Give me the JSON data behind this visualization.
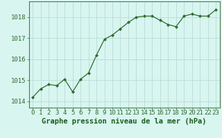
{
  "x": [
    0,
    1,
    2,
    3,
    4,
    5,
    6,
    7,
    8,
    9,
    10,
    11,
    12,
    13,
    14,
    15,
    16,
    17,
    18,
    19,
    20,
    21,
    22,
    23
  ],
  "y": [
    1014.2,
    1014.6,
    1014.8,
    1014.75,
    1015.05,
    1014.45,
    1015.05,
    1015.35,
    1016.2,
    1016.95,
    1017.15,
    1017.45,
    1017.75,
    1018.0,
    1018.05,
    1018.05,
    1017.85,
    1017.65,
    1017.55,
    1018.05,
    1018.15,
    1018.05,
    1018.05,
    1018.35
  ],
  "line_color": "#2d6a2d",
  "marker_color": "#2d6a2d",
  "bg_color": "#d8f5f0",
  "grid_color": "#b8dcd5",
  "xlabel": "Graphe pression niveau de la mer (hPa)",
  "xlabel_color": "#1a5c1a",
  "ylabel_ticks": [
    1014,
    1015,
    1016,
    1017,
    1018
  ],
  "ylim": [
    1013.7,
    1018.75
  ],
  "xlim": [
    -0.5,
    23.5
  ],
  "tick_color": "#2d6a2d",
  "tick_fontsize": 6.5,
  "xlabel_fontsize": 7.5,
  "spine_color": "#4a7a4a"
}
